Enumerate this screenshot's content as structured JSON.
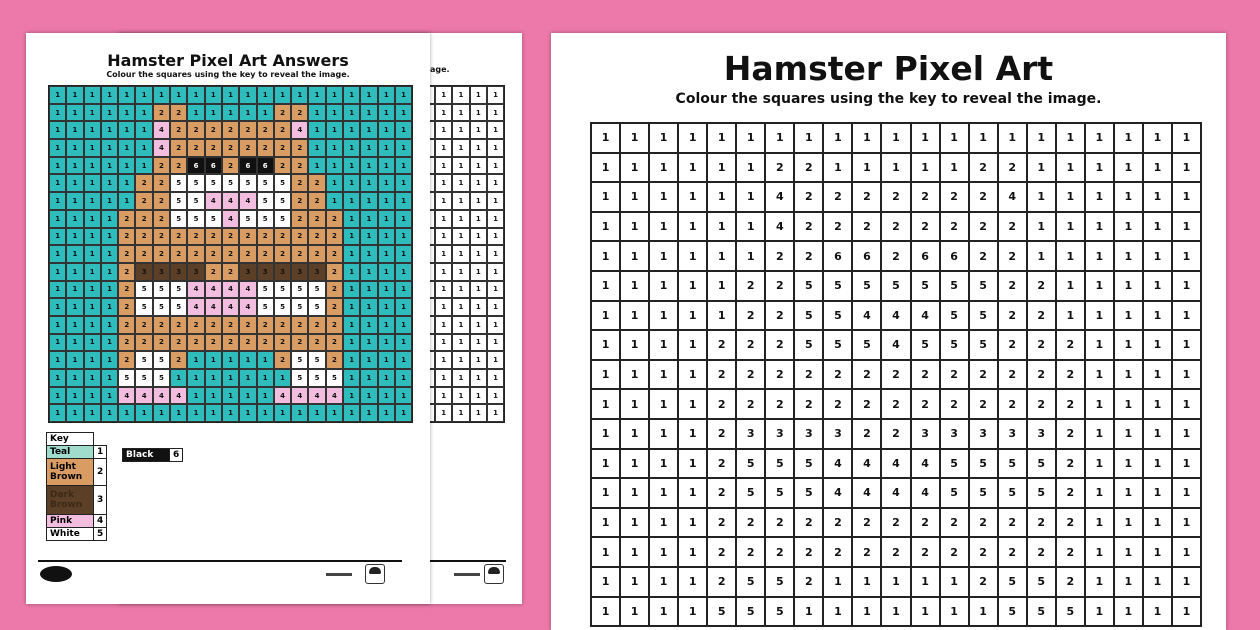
{
  "answers_sheet": {
    "title": "Hamster Pixel Art Answers",
    "subtitle": "Colour the squares using the key to reveal the image."
  },
  "main_sheet": {
    "title": "Hamster Pixel Art",
    "subtitle": "Colour the squares using the key to reveal the image."
  },
  "back_sheet": {
    "subtitle_fragment": "age."
  },
  "key": {
    "label": "Key",
    "items": [
      {
        "name": "Teal",
        "value": "1",
        "color": "#2ebcbc"
      },
      {
        "name": "Light Brown",
        "value": "2",
        "color": "#d99c62"
      },
      {
        "name": "Dark Brown",
        "value": "3",
        "color": "#5b3f26"
      },
      {
        "name": "Pink",
        "value": "4",
        "color": "#f3bde0"
      },
      {
        "name": "White",
        "value": "5",
        "color": "#ffffff"
      },
      {
        "name": "Black",
        "value": "6",
        "color": "#111111"
      }
    ]
  },
  "grid": [
    [
      1,
      1,
      1,
      1,
      1,
      1,
      1,
      1,
      1,
      1,
      1,
      1,
      1,
      1,
      1,
      1,
      1,
      1,
      1,
      1,
      1
    ],
    [
      1,
      1,
      1,
      1,
      1,
      1,
      2,
      2,
      1,
      1,
      1,
      1,
      1,
      2,
      2,
      1,
      1,
      1,
      1,
      1,
      1
    ],
    [
      1,
      1,
      1,
      1,
      1,
      1,
      4,
      2,
      2,
      2,
      2,
      2,
      2,
      2,
      4,
      1,
      1,
      1,
      1,
      1,
      1
    ],
    [
      1,
      1,
      1,
      1,
      1,
      1,
      4,
      2,
      2,
      2,
      2,
      2,
      2,
      2,
      2,
      1,
      1,
      1,
      1,
      1,
      1
    ],
    [
      1,
      1,
      1,
      1,
      1,
      1,
      2,
      2,
      6,
      6,
      2,
      6,
      6,
      2,
      2,
      1,
      1,
      1,
      1,
      1,
      1
    ],
    [
      1,
      1,
      1,
      1,
      1,
      2,
      2,
      5,
      5,
      5,
      5,
      5,
      5,
      5,
      2,
      2,
      1,
      1,
      1,
      1,
      1
    ],
    [
      1,
      1,
      1,
      1,
      1,
      2,
      2,
      5,
      5,
      4,
      4,
      4,
      5,
      5,
      2,
      2,
      1,
      1,
      1,
      1,
      1
    ],
    [
      1,
      1,
      1,
      1,
      2,
      2,
      2,
      5,
      5,
      5,
      4,
      5,
      5,
      5,
      2,
      2,
      2,
      1,
      1,
      1,
      1
    ],
    [
      1,
      1,
      1,
      1,
      2,
      2,
      2,
      2,
      2,
      2,
      2,
      2,
      2,
      2,
      2,
      2,
      2,
      1,
      1,
      1,
      1
    ],
    [
      1,
      1,
      1,
      1,
      2,
      2,
      2,
      2,
      2,
      2,
      2,
      2,
      2,
      2,
      2,
      2,
      2,
      1,
      1,
      1,
      1
    ],
    [
      1,
      1,
      1,
      1,
      2,
      3,
      3,
      3,
      3,
      2,
      2,
      3,
      3,
      3,
      3,
      3,
      2,
      1,
      1,
      1,
      1
    ],
    [
      1,
      1,
      1,
      1,
      2,
      5,
      5,
      5,
      4,
      4,
      4,
      4,
      5,
      5,
      5,
      5,
      2,
      1,
      1,
      1,
      1
    ],
    [
      1,
      1,
      1,
      1,
      2,
      5,
      5,
      5,
      4,
      4,
      4,
      4,
      5,
      5,
      5,
      5,
      2,
      1,
      1,
      1,
      1
    ],
    [
      1,
      1,
      1,
      1,
      2,
      2,
      2,
      2,
      2,
      2,
      2,
      2,
      2,
      2,
      2,
      2,
      2,
      1,
      1,
      1,
      1
    ],
    [
      1,
      1,
      1,
      1,
      2,
      2,
      2,
      2,
      2,
      2,
      2,
      2,
      2,
      2,
      2,
      2,
      2,
      1,
      1,
      1,
      1
    ],
    [
      1,
      1,
      1,
      1,
      2,
      5,
      5,
      2,
      1,
      1,
      1,
      1,
      1,
      2,
      5,
      5,
      2,
      1,
      1,
      1,
      1
    ],
    [
      1,
      1,
      1,
      1,
      5,
      5,
      5,
      1,
      1,
      1,
      1,
      1,
      1,
      1,
      5,
      5,
      5,
      1,
      1,
      1,
      1
    ],
    [
      1,
      1,
      1,
      1,
      4,
      4,
      4,
      4,
      1,
      1,
      1,
      1,
      1,
      4,
      4,
      4,
      4,
      1,
      1,
      1,
      1
    ],
    [
      1,
      1,
      1,
      1,
      1,
      1,
      1,
      1,
      1,
      1,
      1,
      1,
      1,
      1,
      1,
      1,
      1,
      1,
      1,
      1,
      1
    ]
  ]
}
